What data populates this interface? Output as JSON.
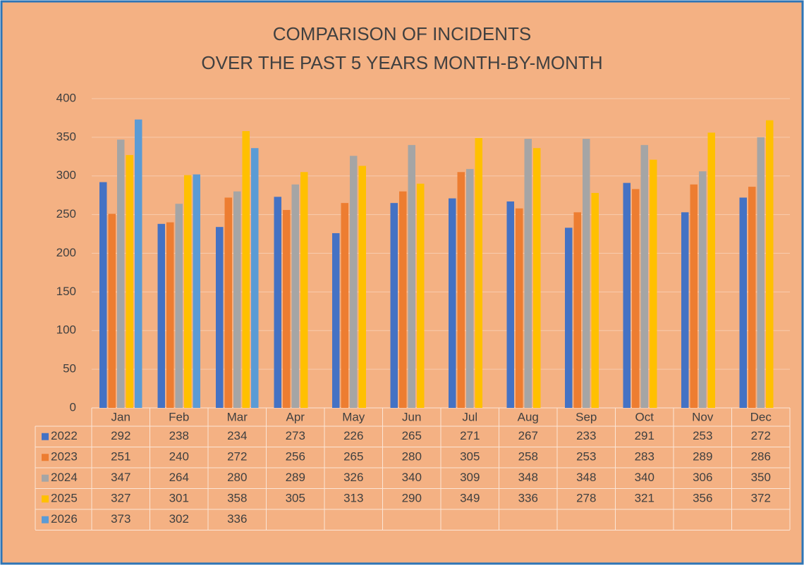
{
  "chart_data": {
    "type": "bar",
    "title": [
      "COMPARISON OF INCIDENTS",
      "OVER THE PAST 5 YEARS MONTH-BY-MONTH"
    ],
    "categories": [
      "Jan",
      "Feb",
      "Mar",
      "Apr",
      "May",
      "Jun",
      "Jul",
      "Aug",
      "Sep",
      "Oct",
      "Nov",
      "Dec"
    ],
    "series": [
      {
        "name": "2022",
        "color": "#4472c4",
        "values": [
          292,
          238,
          234,
          273,
          226,
          265,
          271,
          267,
          233,
          291,
          253,
          272
        ]
      },
      {
        "name": "2023",
        "color": "#ed7d31",
        "values": [
          251,
          240,
          272,
          256,
          265,
          280,
          305,
          258,
          253,
          283,
          289,
          286
        ]
      },
      {
        "name": "2024",
        "color": "#a5a5a5",
        "values": [
          347,
          264,
          280,
          289,
          326,
          340,
          309,
          348,
          348,
          340,
          306,
          350
        ]
      },
      {
        "name": "2025",
        "color": "#ffc000",
        "values": [
          327,
          301,
          358,
          305,
          313,
          290,
          349,
          336,
          278,
          321,
          356,
          372
        ]
      },
      {
        "name": "2026",
        "color": "#5b9bd5",
        "values": [
          373,
          302,
          336,
          null,
          null,
          null,
          null,
          null,
          null,
          null,
          null,
          null
        ]
      }
    ],
    "ylim": [
      0,
      400
    ],
    "yticks": [
      0,
      50,
      100,
      150,
      200,
      250,
      300,
      350,
      400
    ],
    "grid": true
  }
}
